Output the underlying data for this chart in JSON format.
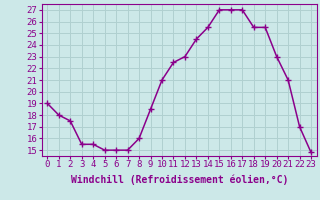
{
  "x": [
    0,
    1,
    2,
    3,
    4,
    5,
    6,
    7,
    8,
    9,
    10,
    11,
    12,
    13,
    14,
    15,
    16,
    17,
    18,
    19,
    20,
    21,
    22,
    23
  ],
  "y": [
    19.0,
    18.0,
    17.5,
    15.5,
    15.5,
    15.0,
    15.0,
    15.0,
    16.0,
    18.5,
    21.0,
    22.5,
    23.0,
    24.5,
    25.5,
    27.0,
    27.0,
    27.0,
    25.5,
    25.5,
    23.0,
    21.0,
    17.0,
    14.8
  ],
  "line_color": "#8b008b",
  "marker": "+",
  "marker_color": "#8b008b",
  "bg_color": "#cce8e8",
  "grid_color": "#b0d0d0",
  "xlabel": "Windchill (Refroidissement éolien,°C)",
  "ylabel_values": [
    15,
    16,
    17,
    18,
    19,
    20,
    21,
    22,
    23,
    24,
    25,
    26,
    27
  ],
  "ylim": [
    14.5,
    27.5
  ],
  "xlim": [
    -0.5,
    23.5
  ],
  "xtick_labels": [
    "0",
    "1",
    "2",
    "3",
    "4",
    "5",
    "6",
    "7",
    "8",
    "9",
    "10",
    "11",
    "12",
    "13",
    "14",
    "15",
    "16",
    "17",
    "18",
    "19",
    "20",
    "21",
    "22",
    "23"
  ],
  "font_color": "#8b008b",
  "font_family": "monospace",
  "font_size": 6.5,
  "xlabel_fontsize": 7.0,
  "linewidth": 1.1,
  "markersize": 4,
  "marker_linewidth": 1.0
}
